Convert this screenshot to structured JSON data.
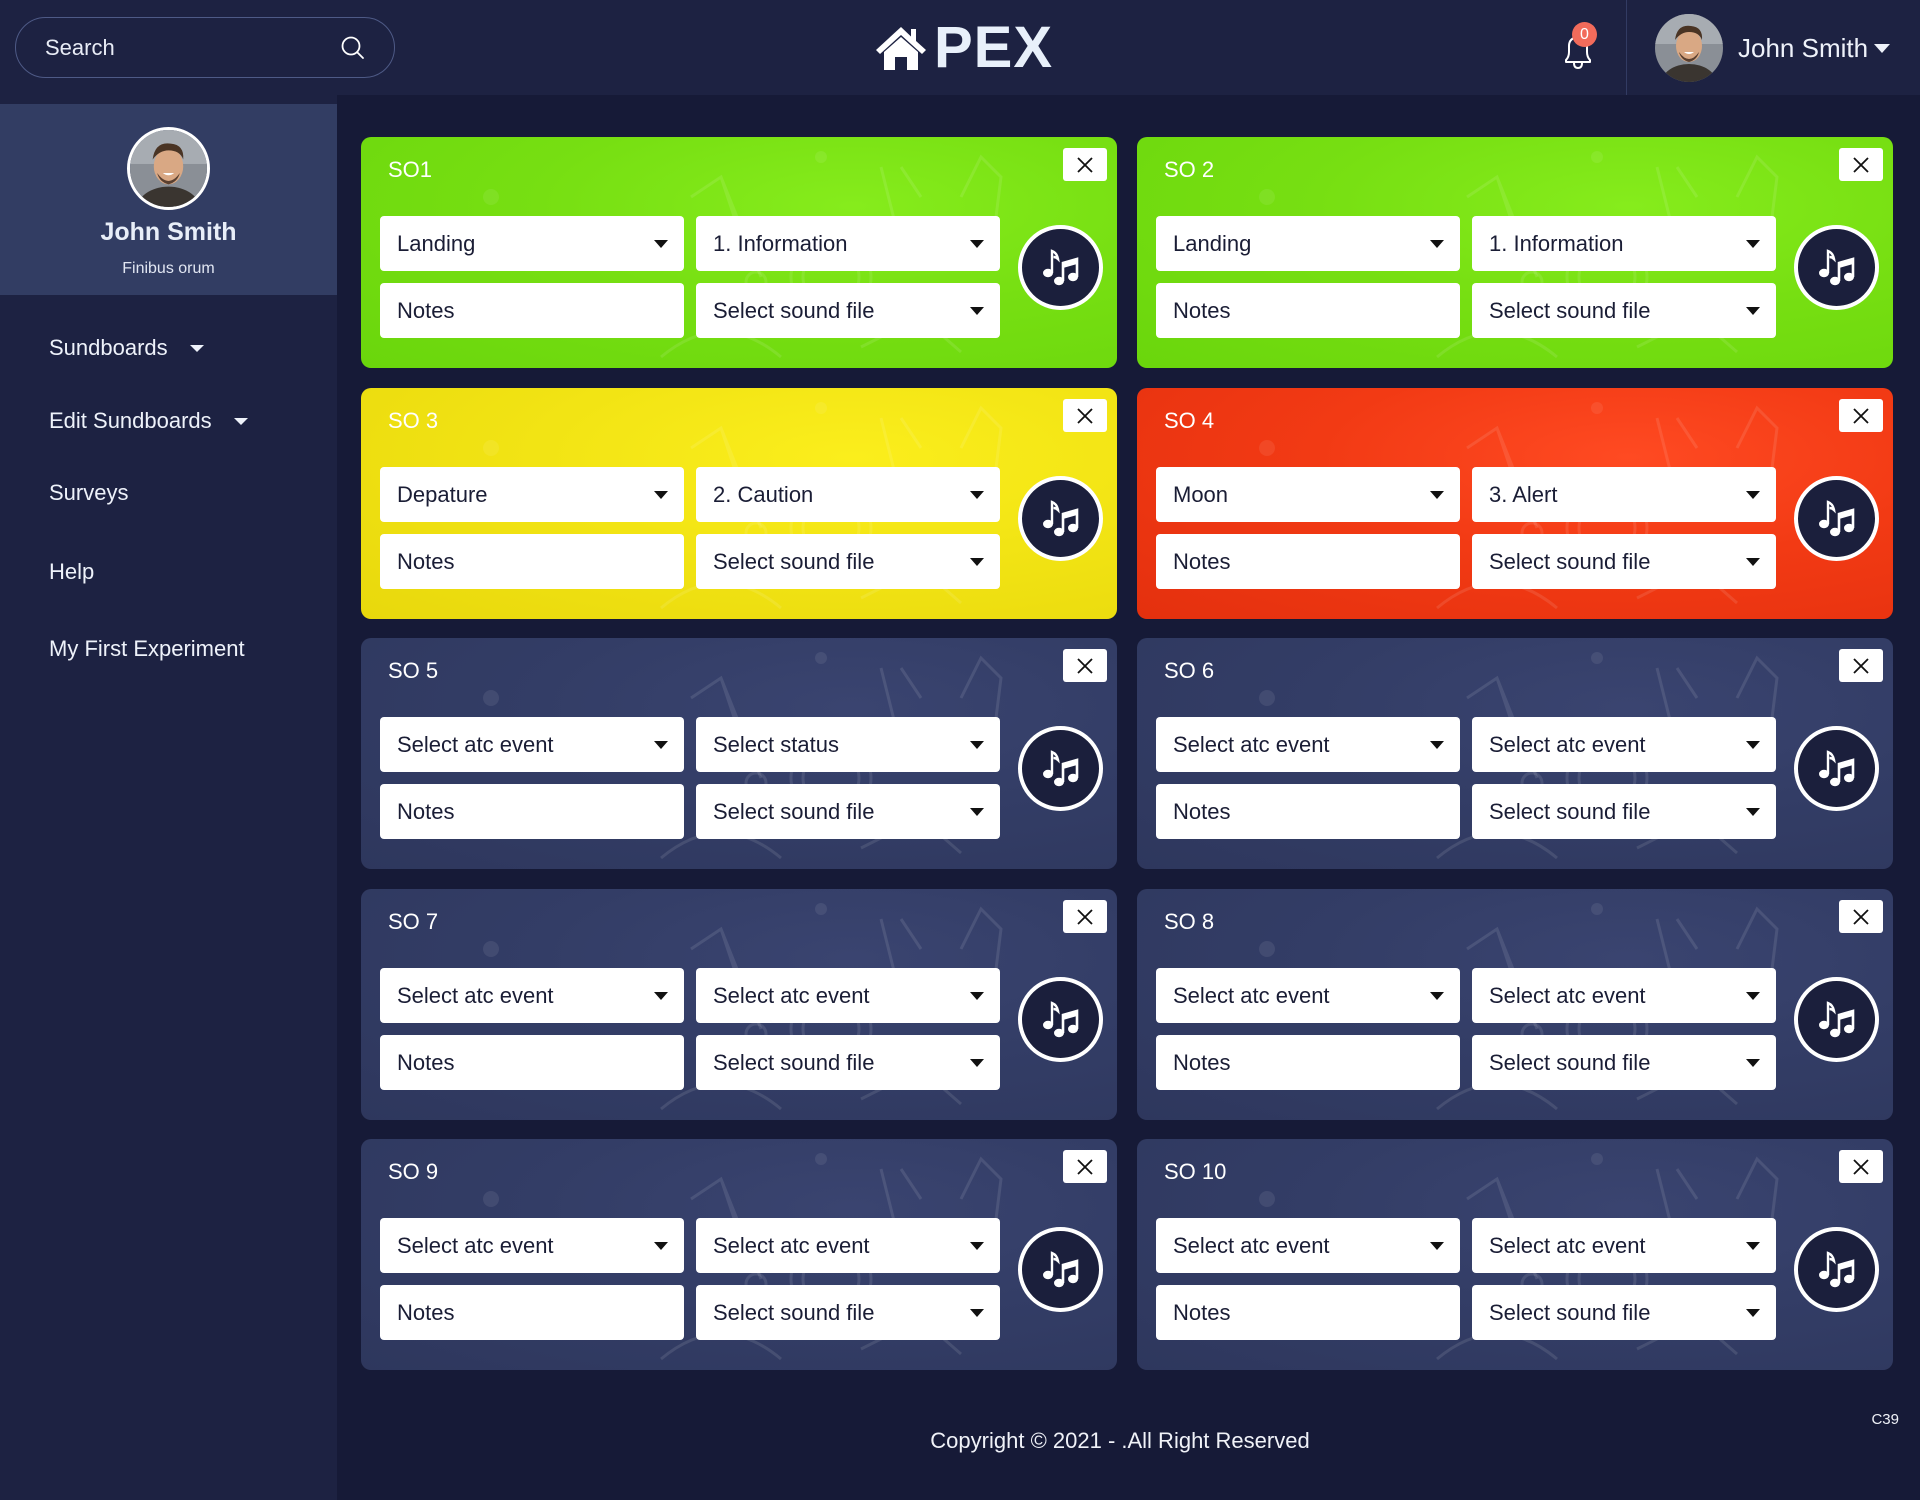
{
  "header": {
    "search": {
      "placeholder": "Search",
      "icon": "search-icon"
    },
    "logo": {
      "text": "PEX",
      "icon": "home-icon"
    },
    "notifications": {
      "icon": "bell-icon",
      "count": "0",
      "badge_color": "#f26b5b"
    },
    "user": {
      "name": "John Smith",
      "icon": "caret-down-icon"
    }
  },
  "sidebar": {
    "profile": {
      "name": "John Smith",
      "subtitle": "Finibus orum"
    },
    "items": [
      {
        "label": "Sundboards",
        "has_dropdown": true
      },
      {
        "label": "Edit Sundboards",
        "has_dropdown": true
      },
      {
        "label": "Surveys",
        "has_dropdown": false
      },
      {
        "label": "Help",
        "has_dropdown": false
      },
      {
        "label": "My First Experiment",
        "has_dropdown": false
      }
    ]
  },
  "colors": {
    "green": "#77df12",
    "yellow": "#f2e414",
    "red": "#f23a14",
    "navy": "#333d66",
    "background": "#161a37",
    "header": "#1d2242"
  },
  "cards": [
    {
      "title": "SO1",
      "color": "green",
      "atc_event": "Landing",
      "status": "1. Information",
      "notes": "Notes",
      "sound_file": "Select sound file"
    },
    {
      "title": "SO 2",
      "color": "green",
      "atc_event": "Landing",
      "status": "1. Information",
      "notes": "Notes",
      "sound_file": "Select sound file"
    },
    {
      "title": "SO 3",
      "color": "yellow",
      "atc_event": "Depature",
      "status": "2. Caution",
      "notes": "Notes",
      "sound_file": "Select sound file"
    },
    {
      "title": "SO 4",
      "color": "red",
      "atc_event": "Moon",
      "status": "3. Alert",
      "notes": "Notes",
      "sound_file": "Select sound file"
    },
    {
      "title": "SO 5",
      "color": "navy",
      "atc_event": "Select atc event",
      "status": "Select status",
      "notes": "Notes",
      "sound_file": "Select sound file"
    },
    {
      "title": "SO 6",
      "color": "navy",
      "atc_event": "Select atc event",
      "status": "Select atc event",
      "notes": "Notes",
      "sound_file": "Select sound file"
    },
    {
      "title": "SO 7",
      "color": "navy",
      "atc_event": "Select atc event",
      "status": "Select atc event",
      "notes": "Notes",
      "sound_file": "Select sound file"
    },
    {
      "title": "SO 8",
      "color": "navy",
      "atc_event": "Select atc event",
      "status": "Select atc event",
      "notes": "Notes",
      "sound_file": "Select sound file"
    },
    {
      "title": "SO 9",
      "color": "navy",
      "atc_event": "Select atc event",
      "status": "Select atc event",
      "notes": "Notes",
      "sound_file": "Select sound file"
    },
    {
      "title": "SO 10",
      "color": "navy",
      "atc_event": "Select atc event",
      "status": "Select atc event",
      "notes": "Notes",
      "sound_file": "Select sound file"
    }
  ],
  "footer": {
    "copyright": "Copyright © 2021 - .All Right Reserved",
    "code": "C39"
  }
}
